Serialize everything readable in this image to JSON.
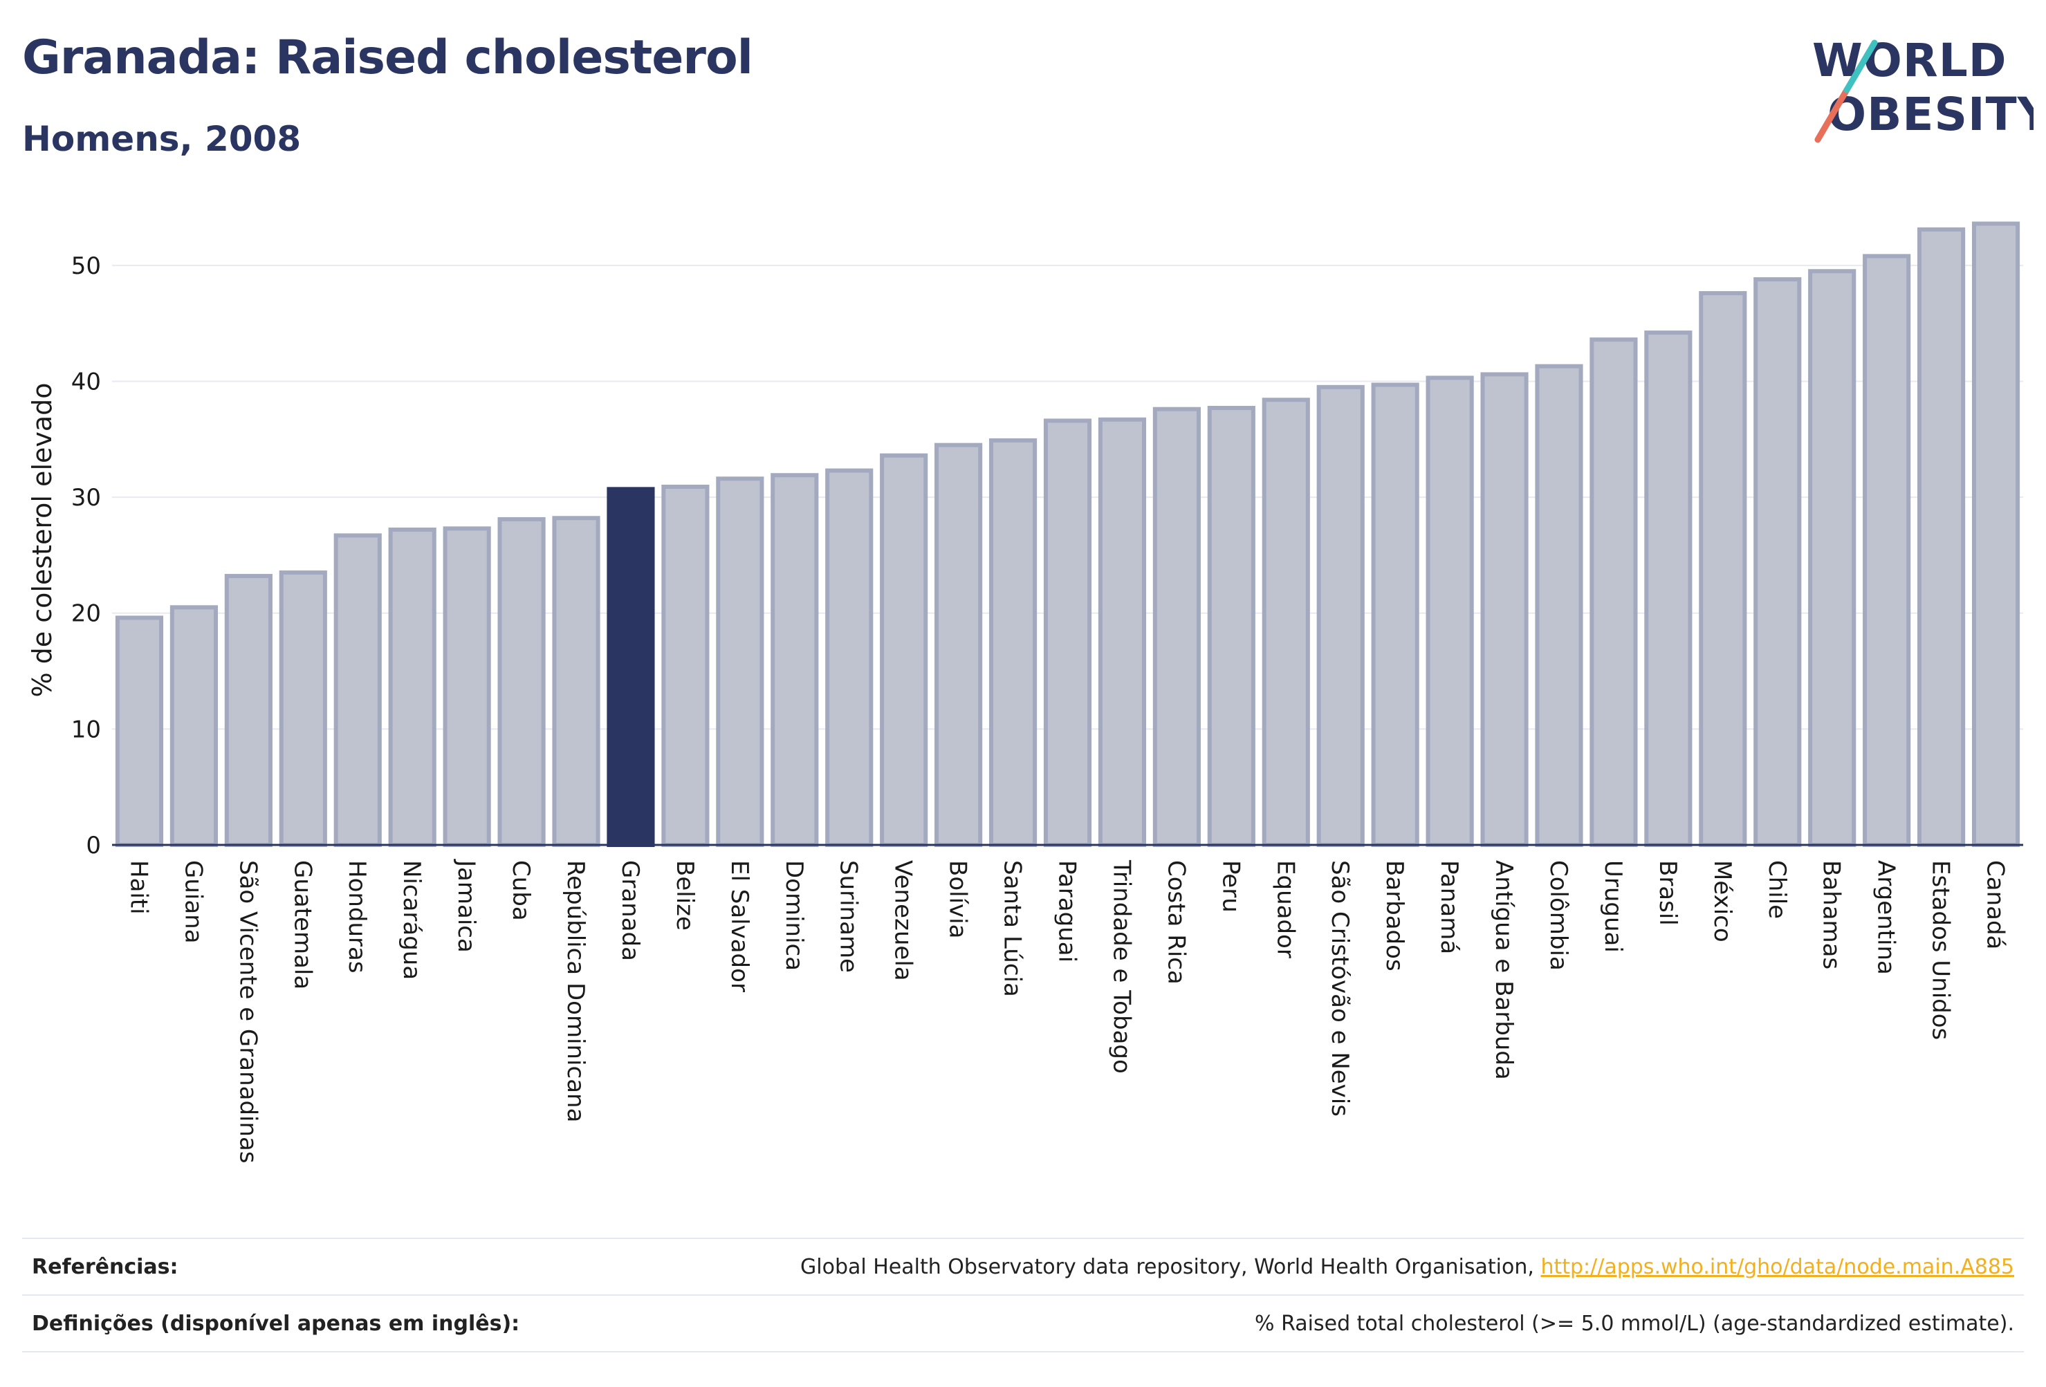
{
  "header": {
    "title": "Granada: Raised cholesterol",
    "subtitle": "Homens, 2008",
    "logo_line1": "WORLD",
    "logo_line2": "OBESITY"
  },
  "colors": {
    "highlight": "#2b3561",
    "bar": "#bfc3d0",
    "bar_edge": "#a3a9be",
    "brand_teal": "#3fc1c0",
    "brand_coral": "#e8705a"
  },
  "chart_data": {
    "type": "bar",
    "ylabel": "% de colesterol elevado",
    "xlabel": "",
    "ylim": [
      0,
      55
    ],
    "yticks": [
      0,
      10,
      20,
      30,
      40,
      50
    ],
    "grid": true,
    "highlight": "Granada",
    "categories": [
      "Haiti",
      "Guiana",
      "São Vicente e Granadinas",
      "Guatemala",
      "Honduras",
      "Nicarágua",
      "Jamaica",
      "Cuba",
      "República Dominicana",
      "Granada",
      "Belize",
      "El Salvador",
      "Dominica",
      "Suriname",
      "Venezuela",
      "Bolívia",
      "Santa Lúcia",
      "Paraguai",
      "Trindade e Tobago",
      "Costa Rica",
      "Peru",
      "Equador",
      "São Cristóvão e Nevis",
      "Barbados",
      "Panamá",
      "Antígua e Barbuda",
      "Colômbia",
      "Uruguai",
      "Brasil",
      "México",
      "Chile",
      "Bahamas",
      "Argentina",
      "Estados Unidos",
      "Canadá"
    ],
    "values": [
      19.6,
      20.5,
      23.2,
      23.5,
      26.7,
      27.2,
      27.3,
      28.1,
      28.2,
      30.7,
      30.9,
      31.6,
      31.9,
      32.3,
      33.6,
      34.5,
      34.9,
      36.6,
      36.7,
      37.6,
      37.7,
      38.4,
      39.5,
      39.7,
      40.3,
      40.6,
      41.3,
      43.6,
      44.2,
      47.6,
      48.8,
      49.5,
      50.8,
      53.1,
      53.6
    ]
  },
  "footer": {
    "references_label": "Referências:",
    "references_text": "Global Health Observatory data repository, World Health Organisation, ",
    "references_link": "http://apps.who.int/gho/data/node.main.A885",
    "definitions_label": "Definições (disponível apenas em inglês):",
    "definitions_text": "% Raised total cholesterol (>= 5.0 mmol/L) (age-standardized estimate)."
  }
}
